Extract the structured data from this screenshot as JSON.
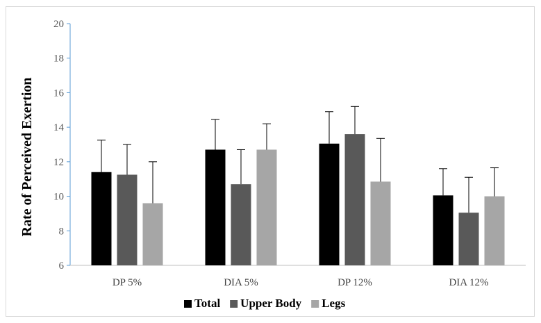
{
  "chart_data": {
    "type": "bar",
    "title": "",
    "xlabel": "",
    "ylabel": "Rate of Perceived Exertion",
    "ylim": [
      6,
      20
    ],
    "yticks": [
      6,
      8,
      10,
      12,
      14,
      16,
      18,
      20
    ],
    "grid": false,
    "legend_position": "bottom",
    "categories": [
      "DP 5%",
      "DIA 5%",
      "DP 12%",
      "DIA 12%"
    ],
    "series": [
      {
        "name": "Total",
        "color": "#000000",
        "values": [
          11.4,
          12.7,
          13.05,
          10.05
        ],
        "error": [
          1.85,
          1.75,
          1.85,
          1.55
        ]
      },
      {
        "name": "Upper Body",
        "color": "#595959",
        "values": [
          11.25,
          10.7,
          13.6,
          9.05
        ],
        "error": [
          1.75,
          2.0,
          1.6,
          2.05
        ]
      },
      {
        "name": "Legs",
        "color": "#a6a6a6",
        "values": [
          9.6,
          12.7,
          10.85,
          10.0
        ],
        "error": [
          2.4,
          1.5,
          2.5,
          1.65
        ]
      }
    ]
  }
}
